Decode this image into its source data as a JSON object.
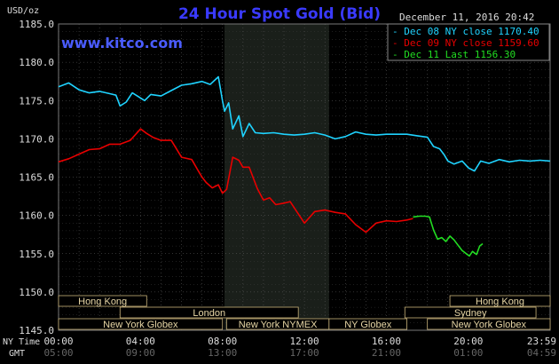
{
  "chart_data": {
    "type": "line",
    "title": "24 Hour Spot Gold (Bid)",
    "watermark": "www.kitco.com",
    "date_label": "December 11, 2016 20:42",
    "ylabel": "USD/oz",
    "ylim": [
      1145,
      1185
    ],
    "y_ticks": [
      "1185.0",
      "1180.0",
      "1175.0",
      "1170.0",
      "1165.0",
      "1160.0",
      "1155.0",
      "1150.0",
      "1145.0"
    ],
    "x_ticks_ny": [
      "00:00",
      "04:00",
      "08:00",
      "12:00",
      "16:00",
      "20:00",
      "23:59"
    ],
    "x_ticks_gmt": [
      "05:00",
      "09:00",
      "13:00",
      "17:00",
      "21:00",
      "01:00",
      "04:59"
    ],
    "x_row_labels": [
      "NY Time",
      "GMT"
    ],
    "grid": true,
    "legend_placement": "top-right",
    "highlight_hours": [
      8.1,
      13.2
    ],
    "sessions": [
      {
        "name": "Hong Kong",
        "start": 0,
        "end": 4.3
      },
      {
        "name": "London",
        "start": 3,
        "end": 11.7
      },
      {
        "name": "New York Globex",
        "start": 0,
        "end": 8
      },
      {
        "name": "New York NYMEX",
        "start": 8.2,
        "end": 13.2
      },
      {
        "name": "NY Globex",
        "start": 13.2,
        "end": 17
      },
      {
        "name": "Hong Kong",
        "start": 19.1,
        "end": 23.99
      },
      {
        "name": "Sydney",
        "start": 16.9,
        "end": 23.3
      },
      {
        "name": "New York Globex",
        "start": 18,
        "end": 23.99
      }
    ],
    "series": [
      {
        "name": "Dec 08 NY close 1170.40",
        "color": "#1fd3ff",
        "x": [
          0,
          0.5,
          1,
          1.5,
          2,
          2.5,
          2.8,
          3,
          3.3,
          3.6,
          3.9,
          4.2,
          4.5,
          5,
          5.5,
          6,
          6.5,
          7,
          7.4,
          7.8,
          8.0,
          8.1,
          8.3,
          8.5,
          8.8,
          9.0,
          9.3,
          9.6,
          10,
          10.5,
          11,
          11.5,
          12,
          12.5,
          13,
          13.5,
          14,
          14.5,
          15,
          15.5,
          16,
          16.5,
          17,
          17.5,
          18,
          18.3,
          18.6,
          18.8,
          19,
          19.3,
          19.7,
          20,
          20.3,
          20.6,
          21,
          21.5,
          22,
          22.5,
          23,
          23.5,
          23.99
        ],
        "values": [
          1176.8,
          1177.3,
          1176.4,
          1176.0,
          1176.2,
          1175.9,
          1175.7,
          1174.3,
          1174.8,
          1176.0,
          1175.5,
          1175.0,
          1175.8,
          1175.6,
          1176.3,
          1177.0,
          1177.2,
          1177.5,
          1177.1,
          1178.1,
          1175.0,
          1173.6,
          1174.7,
          1171.3,
          1173.0,
          1170.3,
          1172.0,
          1170.8,
          1170.7,
          1170.8,
          1170.6,
          1170.5,
          1170.6,
          1170.8,
          1170.5,
          1170.0,
          1170.3,
          1170.9,
          1170.6,
          1170.5,
          1170.6,
          1170.6,
          1170.6,
          1170.4,
          1170.2,
          1169.0,
          1168.7,
          1168.0,
          1167.1,
          1166.7,
          1167.1,
          1166.2,
          1165.8,
          1167.1,
          1166.8,
          1167.3,
          1167.0,
          1167.2,
          1167.1,
          1167.2,
          1167.1
        ]
      },
      {
        "name": "Dec 09 NY close 1159.60",
        "color": "#e80000",
        "x": [
          0,
          0.5,
          1,
          1.5,
          2,
          2.5,
          3,
          3.5,
          4,
          4.3,
          4.6,
          5,
          5.5,
          6,
          6.5,
          6.8,
          7,
          7.2,
          7.5,
          7.8,
          8,
          8.2,
          8.5,
          8.8,
          9,
          9.3,
          9.7,
          10,
          10.3,
          10.6,
          11,
          11.3,
          11.7,
          12,
          12.5,
          13,
          13.5,
          14,
          14.5,
          15,
          15.5,
          16,
          16.5,
          17,
          17.3
        ],
        "values": [
          1167.0,
          1167.4,
          1168.0,
          1168.6,
          1168.7,
          1169.3,
          1169.3,
          1169.8,
          1171.3,
          1170.7,
          1170.2,
          1169.8,
          1169.8,
          1167.6,
          1167.3,
          1165.9,
          1165.0,
          1164.3,
          1163.6,
          1164.0,
          1162.9,
          1163.4,
          1167.6,
          1167.2,
          1166.3,
          1166.3,
          1163.5,
          1162.0,
          1162.3,
          1161.4,
          1161.6,
          1161.8,
          1160.2,
          1159.0,
          1160.5,
          1160.7,
          1160.4,
          1160.2,
          1158.8,
          1157.8,
          1159.0,
          1159.3,
          1159.2,
          1159.4,
          1159.6
        ]
      },
      {
        "name": "Dec 11 Last 1156.30",
        "color": "#22dd22",
        "x": [
          17.3,
          17.6,
          17.9,
          18.1,
          18.3,
          18.5,
          18.7,
          18.9,
          19.1,
          19.3,
          19.5,
          19.7,
          19.9,
          20.05,
          20.2,
          20.4,
          20.55,
          20.7
        ],
        "values": [
          1159.8,
          1159.9,
          1159.9,
          1159.8,
          1158.1,
          1156.9,
          1157.1,
          1156.6,
          1157.3,
          1156.8,
          1156.1,
          1155.4,
          1155.0,
          1154.7,
          1155.3,
          1154.9,
          1156.0,
          1156.3
        ]
      }
    ]
  }
}
